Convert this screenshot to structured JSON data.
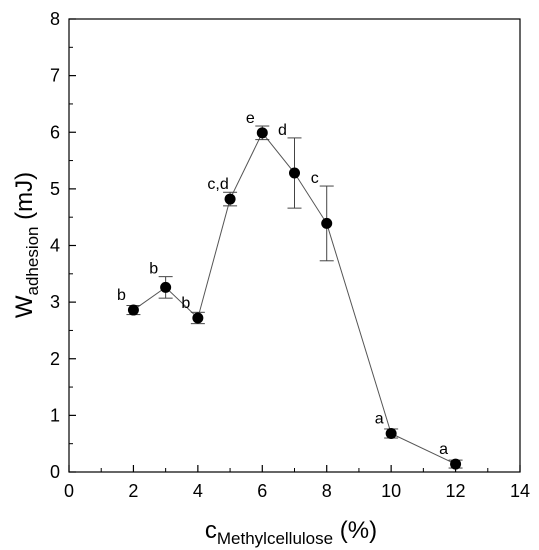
{
  "chart_data": {
    "type": "scatter",
    "connected": true,
    "title": "",
    "xlabel": {
      "main": "c",
      "subscript": "Methylcellulose",
      "suffix": " (%)"
    },
    "ylabel": {
      "main": "W",
      "subscript": "adhesion",
      "suffix": " (mJ)"
    },
    "xlim": [
      0,
      14
    ],
    "ylim": [
      0,
      8
    ],
    "xticks": [
      0,
      2,
      4,
      6,
      8,
      10,
      12,
      14
    ],
    "yticks": [
      0,
      1,
      2,
      3,
      4,
      5,
      6,
      7,
      8
    ],
    "grid": false,
    "legend": "none",
    "marker_color": "#000000",
    "line_color": "#555555",
    "points": [
      {
        "x": 2,
        "y": 2.86,
        "err": 0.08,
        "label": "b"
      },
      {
        "x": 3,
        "y": 3.26,
        "err": 0.19,
        "label": "b"
      },
      {
        "x": 4,
        "y": 2.72,
        "err": 0.1,
        "label": "b"
      },
      {
        "x": 5,
        "y": 4.82,
        "err": 0.12,
        "label": "c,d"
      },
      {
        "x": 6,
        "y": 5.99,
        "err": 0.12,
        "label": "e"
      },
      {
        "x": 7,
        "y": 5.28,
        "err": 0.62,
        "label": "d"
      },
      {
        "x": 8,
        "y": 4.39,
        "err": 0.66,
        "label": "c"
      },
      {
        "x": 10,
        "y": 0.68,
        "err": 0.08,
        "label": "a"
      },
      {
        "x": 12,
        "y": 0.14,
        "err": 0.07,
        "label": "a"
      }
    ]
  }
}
